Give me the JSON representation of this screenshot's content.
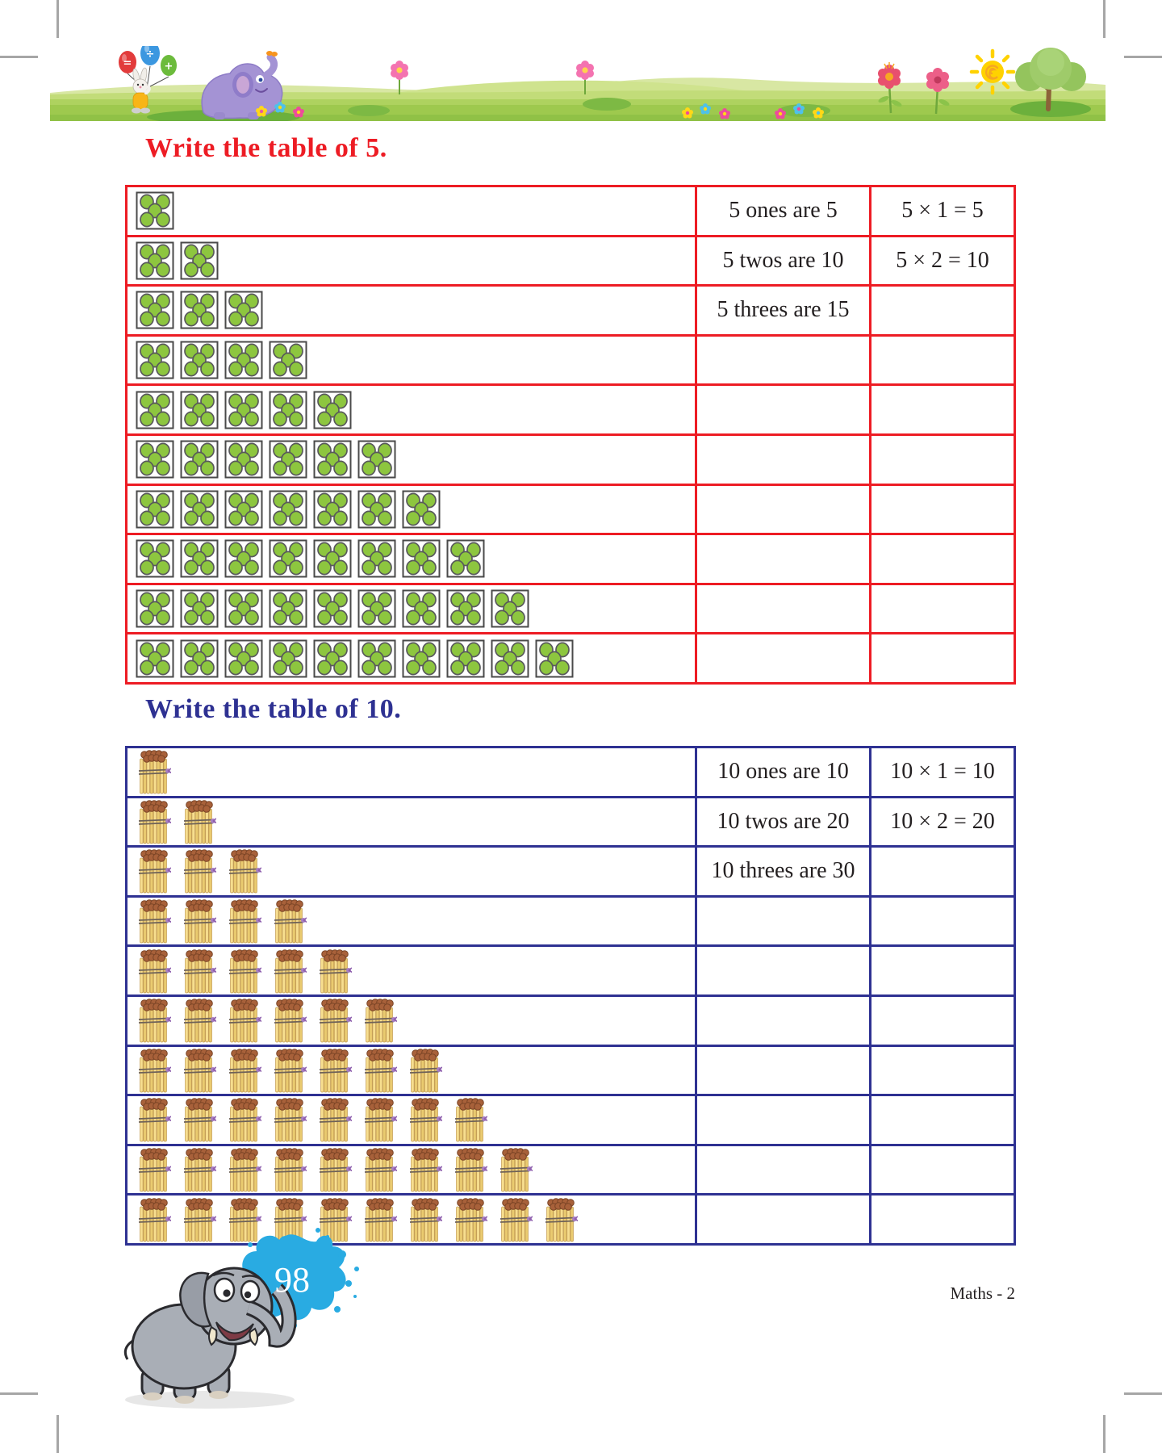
{
  "footer": {
    "page_number": "98",
    "book_label": "Maths - 2"
  },
  "colors": {
    "table5_accent": "#ED1C24",
    "table10_accent": "#2E3192",
    "dot_green": "#8DC63F",
    "splash_blue": "#29ABE2",
    "text": "#231F20"
  },
  "icons": {
    "five_dot_tile": "five-dot-tile-icon",
    "bundle_of_ten": "bundle-of-ten-icon",
    "balloons": [
      "balloon-equals-icon",
      "balloon-divide-icon",
      "balloon-plus-icon"
    ],
    "banner": [
      "rabbit-character",
      "purple-elephant-character",
      "flower-icon",
      "sun-icon",
      "tree-icon"
    ],
    "mascot": [
      "gray-elephant-mascot-icon",
      "paint-splash-icon"
    ]
  },
  "sections": [
    {
      "title": "Write the table of 5.",
      "accent": "#ED1C24",
      "icon": "five-dot-tile-icon",
      "rows": [
        {
          "count": 1,
          "words": "5 ones are 5",
          "equation": "5 × 1 = 5"
        },
        {
          "count": 2,
          "words": "5 twos are 10",
          "equation": "5 × 2 = 10"
        },
        {
          "count": 3,
          "words": "5 threes are 15",
          "equation": ""
        },
        {
          "count": 4,
          "words": "",
          "equation": ""
        },
        {
          "count": 5,
          "words": "",
          "equation": ""
        },
        {
          "count": 6,
          "words": "",
          "equation": ""
        },
        {
          "count": 7,
          "words": "",
          "equation": ""
        },
        {
          "count": 8,
          "words": "",
          "equation": ""
        },
        {
          "count": 9,
          "words": "",
          "equation": ""
        },
        {
          "count": 10,
          "words": "",
          "equation": ""
        }
      ]
    },
    {
      "title": "Write the table of 10.",
      "accent": "#2E3192",
      "icon": "bundle-of-ten-icon",
      "rows": [
        {
          "count": 1,
          "words": "10 ones are 10",
          "equation": "10 × 1 = 10"
        },
        {
          "count": 2,
          "words": "10 twos are 20",
          "equation": "10 × 2 = 20"
        },
        {
          "count": 3,
          "words": "10 threes are 30",
          "equation": ""
        },
        {
          "count": 4,
          "words": "",
          "equation": ""
        },
        {
          "count": 5,
          "words": "",
          "equation": ""
        },
        {
          "count": 6,
          "words": "",
          "equation": ""
        },
        {
          "count": 7,
          "words": "",
          "equation": ""
        },
        {
          "count": 8,
          "words": "",
          "equation": ""
        },
        {
          "count": 9,
          "words": "",
          "equation": ""
        },
        {
          "count": 10,
          "words": "",
          "equation": ""
        }
      ]
    }
  ]
}
